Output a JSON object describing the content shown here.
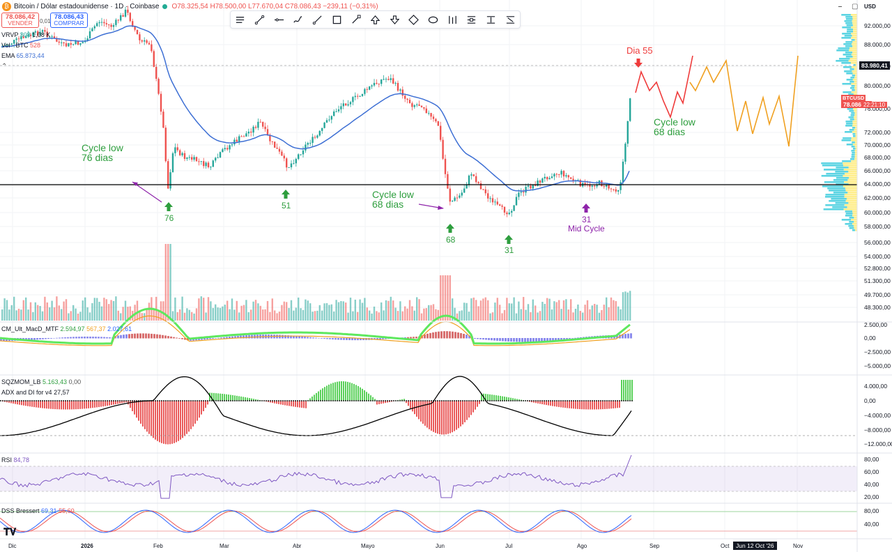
{
  "header": {
    "symbol": "Bitcoin / Dólar estadounidense · 1D · Coinbase",
    "ohlc": "O78.325,54 H78.500,00 L77.670,04 C78.086,43 −239,11 (−0,31%)",
    "sell_price": "78.086,42",
    "sell_label": "VENDER",
    "buy_price": "78.086,43",
    "buy_label": "COMPRAR",
    "spread": "0,01"
  },
  "indicators": {
    "vrvp": {
      "name": "VRVP",
      "v1": "308",
      "v2": "1,08 K"
    },
    "vol": {
      "name": "Vol · BTC",
      "value": "528"
    },
    "ema": {
      "name": "EMA",
      "value": "65.873,44"
    },
    "macd": {
      "name": "CM_Ult_MacD_MTF",
      "v1": "2.594,97",
      "v2": "567,37",
      "v3": "2.027,61"
    },
    "sqz": {
      "name": "SQZMOM_LB",
      "v1": "5.163,43",
      "v2": "0,00"
    },
    "adx": {
      "name": "ADX and DI for v4",
      "value": "27,57"
    },
    "rsi": {
      "name": "RSI",
      "value": "84,78"
    },
    "dss": {
      "name": "DSS Bressert",
      "v1": "69,31",
      "v2": "55,60"
    }
  },
  "axis": {
    "currency": "USD",
    "price_ticks": [
      "92.000,00",
      "88.000,00",
      "84.000,00",
      "80.000,00",
      "76.000,00",
      "72.000,00",
      "70.000,00",
      "68.000,00",
      "66.000,00",
      "64.000,00",
      "62.000,00",
      "60.000,00",
      "58.000,00",
      "56.000,00",
      "54.000,00",
      "52.800,00",
      "51.300,00",
      "49.700,00",
      "48.300,00"
    ],
    "macd_ticks": [
      "2.500,00",
      "0,00",
      "−2.500,00",
      "−5.000,00"
    ],
    "sqz_ticks": [
      "4.000,00",
      "0,00",
      "−4.000,00",
      "−8.000,00",
      "−12.000,00"
    ],
    "rsi_ticks": [
      "80,00",
      "60,00",
      "40,00",
      "20,00"
    ],
    "dss_ticks": [
      "80,00",
      "40,00"
    ],
    "x_ticks": [
      "Dic",
      "2026",
      "Feb",
      "Mar",
      "Abr",
      "Mayo",
      "Jun",
      "Jul",
      "Ago",
      "Sep",
      "Oct",
      "Nov"
    ],
    "crosshair_date": "Jun 12 Oct '26",
    "price_tag": "83.980,41",
    "btc_tag_label": "BTCUSD",
    "btc_tag_price": "78.086,43",
    "btc_tag_time": "22:21:10"
  },
  "annotations": {
    "cycle_low_76_l1": "Cycle low",
    "cycle_low_76_l2": "76 dias",
    "cycle_low_68_l1": "Cycle low",
    "cycle_low_68_l2": "68 dias",
    "cycle_low_68b_l1": "Cycle low",
    "cycle_low_68b_l2": "68 dias",
    "dia55": "Dia 55",
    "n76": "76",
    "n51": "51",
    "n68": "68",
    "n31": "31",
    "n31b": "31",
    "mid_cycle": "Mid Cycle"
  },
  "colors": {
    "up": "#26a69a",
    "down": "#ef5350",
    "ema": "#3d6fd4",
    "annotation_green": "#2e9e3e",
    "annotation_purple": "#8e24aa",
    "projection_red": "#ef3b3b",
    "projection_orange": "#f0a020"
  },
  "icons": [
    "pen-icon",
    "trend-line-icon",
    "horizontal-line-icon",
    "brush-icon",
    "ray-icon",
    "rectangle-icon",
    "path-icon",
    "arrow-up-icon",
    "arrow-down-icon",
    "arrow-marker-icon",
    "ellipse-icon",
    "long-position-icon",
    "date-range-icon",
    "price-range-icon",
    "measure-icon"
  ]
}
